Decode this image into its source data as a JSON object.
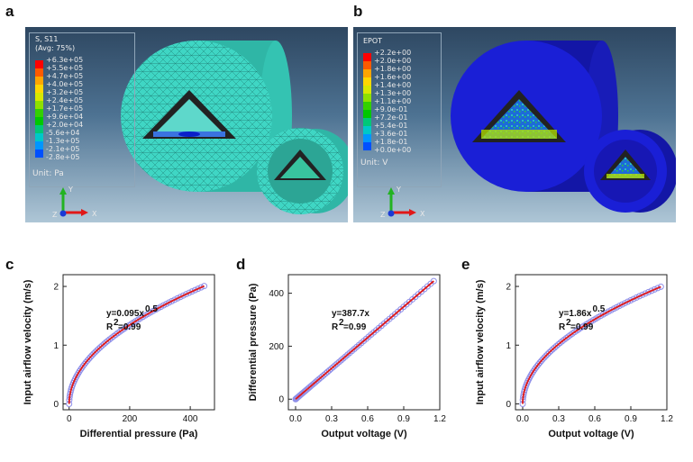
{
  "panels": {
    "a": "a",
    "b": "b",
    "c": "c",
    "d": "d",
    "e": "e"
  },
  "fe_a": {
    "title_line1": "S, S11",
    "title_line2": "(Avg: 75%)",
    "ticks": [
      "+6.3e+05",
      "+5.5e+05",
      "+4.7e+05",
      "+4.0e+05",
      "+3.2e+05",
      "+2.4e+05",
      "+1.7e+05",
      "+9.6e+04",
      "+2.0e+04",
      "-5.6e+04",
      "-1.3e+05",
      "-2.1e+05",
      "-2.8e+05"
    ],
    "unit": "Unit: Pa",
    "axis_y": "Y",
    "axis_x": "X",
    "axis_z": "Z",
    "body_color": "#3fd6c4"
  },
  "fe_b": {
    "title_line1": "EPOT",
    "ticks": [
      "+2.2e+00",
      "+2.0e+00",
      "+1.8e+00",
      "+1.6e+00",
      "+1.4e+00",
      "+1.3e+00",
      "+1.1e+00",
      "+9.0e-01",
      "+7.2e-01",
      "+5.4e-01",
      "+3.6e-01",
      "+1.8e-01",
      "+0.0e+00"
    ],
    "unit": "Unit: V",
    "axis_y": "Y",
    "axis_x": "X",
    "axis_z": "Z",
    "body_color": "#1a1fd6"
  },
  "legend_colors": [
    "#ff0000",
    "#ff5a00",
    "#ffa500",
    "#ffd700",
    "#d8e800",
    "#8ee000",
    "#33d000",
    "#00c800",
    "#00c878",
    "#00c8c8",
    "#0096ff",
    "#0050ff",
    "#0000ff"
  ],
  "chart_data": [
    {
      "type": "scatter",
      "xlabel": "Differential pressure (Pa)",
      "ylabel": "Input airflow velocity (m/s)",
      "xlim": [
        -20,
        480
      ],
      "ylim": [
        -0.1,
        2.2
      ],
      "xticks": [
        0,
        200,
        400
      ],
      "yticks": [
        0,
        1,
        2
      ],
      "fit": {
        "a": 0.095,
        "power": 0.5
      },
      "equation": "y=0.095x",
      "equation_sup": "0.5",
      "r2": "R",
      "r2_sup": "2",
      "r2_val": "=0.99",
      "x_range": [
        0,
        446
      ],
      "series_color": "#8f8fe8",
      "fit_color": "#e01818"
    },
    {
      "type": "scatter",
      "xlabel": "Output voltage (V)",
      "ylabel": "Differential pressure (Pa)",
      "xlim": [
        -0.06,
        1.2
      ],
      "ylim": [
        -40,
        470
      ],
      "xticks": [
        0.0,
        0.3,
        0.6,
        0.9,
        1.2
      ],
      "xtick_labels": [
        "0.0",
        "0.3",
        "0.6",
        "0.9",
        "1.2"
      ],
      "yticks": [
        0,
        200,
        400
      ],
      "fit": {
        "a": 387.7,
        "power": 1
      },
      "equation": "y=387.7x",
      "equation_sup": "",
      "r2": "R",
      "r2_sup": "2",
      "r2_val": "=0.99",
      "x_range": [
        0,
        1.15
      ],
      "series_color": "#8f8fe8",
      "fit_color": "#e01818"
    },
    {
      "type": "scatter",
      "xlabel": "Output voltage (V)",
      "ylabel": "Input airflow velocity (m/s)",
      "xlim": [
        -0.06,
        1.2
      ],
      "ylim": [
        -0.1,
        2.2
      ],
      "xticks": [
        0.0,
        0.3,
        0.6,
        0.9,
        1.2
      ],
      "xtick_labels": [
        "0.0",
        "0.3",
        "0.6",
        "0.9",
        "1.2"
      ],
      "yticks": [
        0,
        1,
        2
      ],
      "fit": {
        "a": 1.86,
        "power": 0.5
      },
      "equation": "y=1.86x",
      "equation_sup": "0.5",
      "r2": "R",
      "r2_sup": "2",
      "r2_val": "=0.99",
      "x_range": [
        0,
        1.15
      ],
      "series_color": "#8f8fe8",
      "fit_color": "#e01818"
    }
  ]
}
